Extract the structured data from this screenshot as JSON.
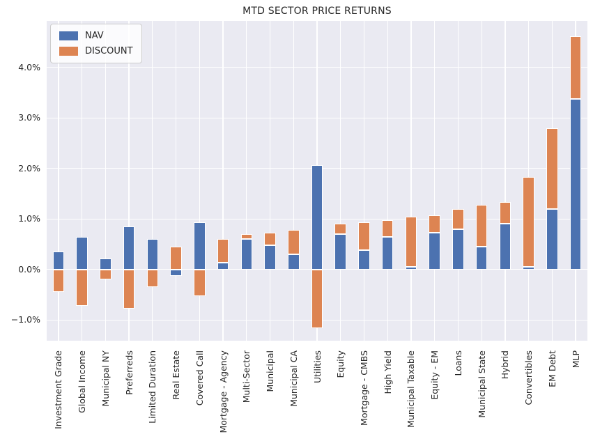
{
  "chart_data": {
    "type": "bar",
    "stacked": true,
    "title": "MTD SECTOR PRICE RETURNS",
    "xlabel": "",
    "ylabel": "",
    "categories": [
      "Investment Grade",
      "Global Income",
      "Municipal NY",
      "Preferreds",
      "Limited Duration",
      "Real Estate",
      "Covered Call",
      "Mortgage - Agency",
      "Multi-Sector",
      "Municipal",
      "Municipal CA",
      "Utilities",
      "Equity",
      "Mortgage - CMBS",
      "High Yield",
      "Municipal Taxable",
      "Equity - EM",
      "Loans",
      "Municipal State",
      "Hybrid",
      "Convertibles",
      "EM Debt",
      "MLP"
    ],
    "series": [
      {
        "name": "NAV",
        "color": "#4c72b0",
        "values": [
          0.35,
          0.65,
          0.22,
          0.85,
          0.6,
          -0.13,
          0.94,
          0.14,
          0.6,
          0.48,
          0.3,
          2.06,
          0.7,
          0.38,
          0.65,
          0.05,
          0.73,
          0.8,
          0.45,
          0.91,
          0.05,
          1.2,
          3.37
        ]
      },
      {
        "name": "DISCOUNT",
        "color": "#dd8452",
        "values": [
          -0.45,
          -0.72,
          -0.2,
          -0.77,
          -0.35,
          0.45,
          -0.53,
          0.46,
          0.1,
          0.25,
          0.48,
          -1.16,
          0.2,
          0.55,
          0.32,
          1.0,
          0.34,
          0.4,
          0.83,
          0.43,
          1.78,
          1.6,
          1.25
        ]
      }
    ],
    "yticks": {
      "values": [
        4,
        3,
        2,
        1,
        0,
        -1
      ],
      "labels": [
        "4.0%",
        "3.0%",
        "2.0%",
        "1.0%",
        "0.0%",
        "−1.0%"
      ]
    },
    "ylim": [
      -1.41,
      4.92
    ],
    "grid": true,
    "legend_position": "upper-left",
    "colors": {
      "plot_bg": "#eaeaf2",
      "grid": "#ffffff",
      "text": "#262626",
      "bar_edge": "#ffffff"
    }
  }
}
